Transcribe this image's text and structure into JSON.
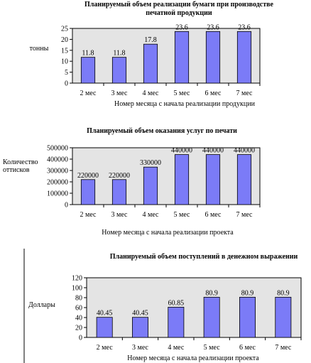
{
  "chart_data": [
    {
      "type": "bar",
      "title": "Планируемый объем реализации бумаги при производстве печатной продукции",
      "title_lines": [
        "Планируемый объем реализации бумаги при производстве",
        "печатной продукции"
      ],
      "xlabel": "Номер месяца с начала реализации продукции",
      "ylabel": "тонны",
      "ylabel_lines": [
        "тонны"
      ],
      "categories": [
        "2 мес",
        "3 мес",
        "4 мес",
        "5 мес",
        "6 мес",
        "7 мес"
      ],
      "values": [
        11.8,
        11.8,
        17.8,
        23.6,
        23.6,
        23.6
      ],
      "data_labels": [
        "11.8",
        "11.8",
        "17.8",
        "23.6",
        "23.6",
        "23.6"
      ],
      "ylim": [
        0,
        25
      ],
      "yticks": [
        0,
        5,
        10,
        15,
        20,
        25
      ],
      "grid": false,
      "legend": "none",
      "bar_color": "#7b7bf7",
      "plot_bg": "#e4e4e4"
    },
    {
      "type": "bar",
      "title": "Планируемый объем оказания услуг по печати",
      "title_lines": [
        "Планируемый объем оказания услуг по печати"
      ],
      "xlabel": "Номер месяца с начала реализации проекта",
      "ylabel": "Количество оттисков",
      "ylabel_lines": [
        "Количество",
        "оттисков"
      ],
      "categories": [
        "2 мес",
        "3 мес",
        "4 мес",
        "5 мес",
        "6 мес",
        "7 мес"
      ],
      "values": [
        220000,
        220000,
        330000,
        440000,
        440000,
        440000
      ],
      "data_labels": [
        "220000",
        "220000",
        "330000",
        "440000",
        "440000",
        "440000"
      ],
      "ylim": [
        0,
        500000
      ],
      "yticks": [
        0,
        100000,
        200000,
        300000,
        400000,
        500000
      ],
      "grid": false,
      "legend": "none",
      "bar_color": "#7b7bf7",
      "plot_bg": "#e4e4e4"
    },
    {
      "type": "bar",
      "title": "Планируемый объем поступлений в денежном выражении",
      "title_lines": [
        "Планируемый объем поступлений в денежном выражении"
      ],
      "xlabel": "Номер месяца с начала реализации проекта",
      "ylabel": "Доллары",
      "ylabel_lines": [
        "Доллары"
      ],
      "categories": [
        "2 мес",
        "3 мес",
        "4 мес",
        "5 мес",
        "6 мес",
        "7 мес"
      ],
      "values": [
        40.45,
        40.45,
        60.85,
        80.9,
        80.9,
        80.9
      ],
      "data_labels": [
        "40.45",
        "40.45",
        "60.85",
        "80.9",
        "80.9",
        "80.9"
      ],
      "ylim": [
        0,
        120
      ],
      "yticks": [
        0,
        20,
        40,
        60,
        80,
        100,
        120
      ],
      "grid": false,
      "legend": "none",
      "bar_color": "#7b7bf7",
      "plot_bg": "#e4e4e4"
    }
  ]
}
